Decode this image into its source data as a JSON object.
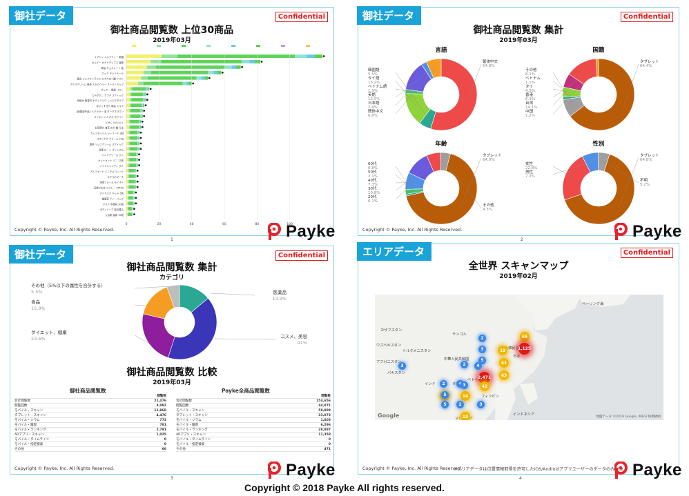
{
  "colors": {
    "accent": "#1aa3d9",
    "confidential": "#e02020",
    "brand_red": "#e6232c"
  },
  "common": {
    "confidential": "Confidential",
    "copyright_small": "Copyright © Payke, Inc. All Rights Reserved.",
    "logo_text": "Payke",
    "footer": "Copyright © 2018 Payke  All rights reserved."
  },
  "slide1": {
    "tag": "御社データ",
    "title": "御社商品閲覧数 上位30商品",
    "subtitle": "2019年03月",
    "page": "1",
    "xticks": [
      "0",
      "20",
      "40",
      "60",
      "80",
      "100"
    ],
    "items": [
      {
        "label": "リプトン ミルクティー 紙箱",
        "v": 120
      },
      {
        "label": "カルビー ポテトチップス 塩味",
        "v": 82
      },
      {
        "label": "明治 チョコレート 板",
        "v": 70
      },
      {
        "label": "ロッテ キシリトール",
        "v": 58
      },
      {
        "label": "森永 ミルクキャラメル ヒアルロン酸 イワシ",
        "v": 50
      },
      {
        "label": "アイスクリーム 抹茶 ストロベリー スーパーカップ",
        "v": 40
      },
      {
        "label": "ポッキー 極細 ハロー",
        "v": 14
      },
      {
        "label": "じゃがりこ サラダ スティック",
        "v": 12
      },
      {
        "label": "化粧水 無香料 ボディミルク しっとりタイプ",
        "v": 12
      },
      {
        "label": "ほいくすきや 明治 ミルク",
        "v": 11
      },
      {
        "label": "【医薬部外品】ヘアカラー 泡 ダークブラウン",
        "v": 10
      },
      {
        "label": "ライオン ハミガキ ホワイト",
        "v": 10
      },
      {
        "label": "ビオレ UVジェル",
        "v": 9
      },
      {
        "label": "お茶漬け 海苔 のり 鮭 うま",
        "v": 9
      },
      {
        "label": "カップヌードル シーフード 3個",
        "v": 8
      },
      {
        "label": "スキンケア クリーム 20g",
        "v": 8
      },
      {
        "label": "薬用 リップクリーム スティック",
        "v": 8
      },
      {
        "label": "目薬 ロート プレミアム",
        "v": 8
      },
      {
        "label": "ハンドクリーム ミニ",
        "v": 7
      },
      {
        "label": "キットカット ミニ 12枚",
        "v": 7
      },
      {
        "label": "ソフトキャンディ グミ",
        "v": 7
      },
      {
        "label": "アルフォート ミニチョコレート",
        "v": 6
      },
      {
        "label": "コアラのマーチ",
        "v": 6
      },
      {
        "label": "洗顔フォーム モイスト",
        "v": 6
      },
      {
        "label": "日焼け止め スプレー SPF50",
        "v": 6
      },
      {
        "label": "アイマスク ホット 5枚",
        "v": 5
      },
      {
        "label": "健康茶 ティーバッグ",
        "v": 5
      },
      {
        "label": "マスク 不織布 30枚",
        "v": 5
      },
      {
        "label": "ボディソープ 詰め替え",
        "v": 4
      },
      {
        "label": "入浴剤 温泉 10錠",
        "v": 4
      }
    ]
  },
  "slide2": {
    "tag": "御社データ",
    "title": "御社商品閲覧数 集計",
    "subtitle": "2019年03月",
    "page": "2",
    "charts": [
      {
        "title": "言語",
        "slices": [
          {
            "name": "繁体中文",
            "pct": "54.8%",
            "v": 54.8,
            "color": "#ee4a4a"
          },
          {
            "name": "韓国語",
            "pct": "5.5%",
            "v": 5.5,
            "color": "#2aa893"
          },
          {
            "name": "タイ語",
            "pct": "15.2%",
            "v": 15.2,
            "color": "#8fd23a"
          },
          {
            "name": "ベトナム語",
            "pct": "1.9%",
            "v": 1.9,
            "color": "#45c16b"
          },
          {
            "name": "英語",
            "pct": "13.5%",
            "v": 13.5,
            "color": "#6a5adf"
          },
          {
            "name": "日本語",
            "pct": "2.4%",
            "v": 2.4,
            "color": "#4f90e8"
          },
          {
            "name": "簡体中文",
            "pct": "6.8%",
            "v": 6.8,
            "color": "#f59d22"
          }
        ]
      },
      {
        "title": "国籍",
        "slices": [
          {
            "name": "タブレット",
            "pct": "64.4%",
            "v": 64.4,
            "color": "#b85c08"
          },
          {
            "name": "その他",
            "pct": "8.1%",
            "v": 8.1,
            "color": "#9e9e9e"
          },
          {
            "name": "ベトナム",
            "pct": "1.1%",
            "v": 1.1,
            "color": "#2aa893"
          },
          {
            "name": "タイ",
            "pct": "4.5%",
            "v": 4.5,
            "color": "#8fd23a"
          },
          {
            "name": "香港",
            "pct": "6.3%",
            "v": 6.3,
            "color": "#c2307a"
          },
          {
            "name": "台湾",
            "pct": "14.1%",
            "v": 14.1,
            "color": "#ee4a4a"
          },
          {
            "name": "中国",
            "pct": "1.2%",
            "v": 1.2,
            "color": "#f59d22"
          }
        ]
      },
      {
        "title": "年齢",
        "slices": [
          {
            "name": "タブレット",
            "pct": "64.9%",
            "v": 64.9,
            "color": "#b85c08"
          },
          {
            "name": "60代",
            "pct": "0.8%",
            "v": 0.8,
            "color": "#2aa893"
          },
          {
            "name": "50代",
            "pct": "2.1%",
            "v": 2.1,
            "color": "#45c16b"
          },
          {
            "name": "40代",
            "pct": "7.3%",
            "v": 7.3,
            "color": "#4f90e8"
          },
          {
            "name": "30代",
            "pct": "10.8%",
            "v": 10.8,
            "color": "#6a5adf"
          },
          {
            "name": "20代",
            "pct": "6.1%",
            "v": 6.1,
            "color": "#ee4a4a"
          },
          {
            "name": "その他",
            "pct": "4.3%",
            "v": 4.3,
            "color": "#9e9e9e"
          }
        ]
      },
      {
        "title": "性別",
        "slices": [
          {
            "name": "タブレット",
            "pct": "64.8%",
            "v": 64.8,
            "color": "#b85c08"
          },
          {
            "name": "女性",
            "pct": "22.8%",
            "v": 22.8,
            "color": "#ee4a4a"
          },
          {
            "name": "男性",
            "pct": "7.3%",
            "v": 7.3,
            "color": "#4f90e8"
          },
          {
            "name": "不明",
            "pct": "5.2%",
            "v": 5.2,
            "color": "#9e9e9e"
          }
        ]
      }
    ]
  },
  "slide3": {
    "tag": "御社データ",
    "title": "御社商品閲覧数 集計",
    "subtitle": "カテゴリ",
    "page": "3",
    "slices": [
      {
        "name": "医薬品",
        "pct": "13.9%",
        "v": 13.9,
        "color": "#2aa893"
      },
      {
        "name": "コスメ、美容",
        "pct": "41%",
        "v": 41,
        "color": "#3b35b8"
      },
      {
        "name": "ダイエット、健康",
        "pct": "23.6%",
        "v": 23.6,
        "color": "#8e1e9e"
      },
      {
        "name": "食品",
        "pct": "15.9%",
        "v": 15.9,
        "color": "#f59d22"
      },
      {
        "name": "その他（5%以下の属性を合計する）",
        "pct": "5.5%",
        "v": 5.5,
        "color": "#bdbdbd"
      }
    ],
    "compare_title": "御社商品閲覧数 比較",
    "compare_subtitle": "2019年03月",
    "left_table_title": "御社商品閲覧数",
    "right_table_title": "Payke全商品閲覧数",
    "col_header": "閲覧数",
    "left_rows": [
      [
        "合計閲覧数",
        "21,476"
      ],
      [
        "閲覧回数",
        "4,092"
      ],
      [
        "モバイル・スキャン",
        "11,868"
      ],
      [
        "タブレット・スキャン",
        "4,476"
      ],
      [
        "モバイル・ジラム",
        "773"
      ],
      [
        "モバイル・履歴",
        "781"
      ],
      [
        "モバイル・ランキング",
        "2,791"
      ],
      [
        "ARアプリ・スキャン",
        "1,025"
      ],
      [
        "モバイル・タイムライン",
        "0"
      ],
      [
        "モバイル・指定検索",
        "0"
      ],
      [
        "その他",
        "66"
      ]
    ],
    "right_rows": [
      [
        "合計閲覧数",
        "154,656"
      ],
      [
        "閲覧回数",
        "44,071"
      ],
      [
        "モバイル・スキャン",
        "59,889"
      ],
      [
        "タブレット・スキャン",
        "33,073"
      ],
      [
        "モバイル・ジラム",
        "1,803"
      ],
      [
        "モバイル・履歴",
        "6,296"
      ],
      [
        "モバイル・ランキング",
        "28,897"
      ],
      [
        "ARアプリ・スキャン",
        "11,358"
      ],
      [
        "モバイル・タイムライン",
        "0"
      ],
      [
        "モバイル・指定検索",
        "0"
      ],
      [
        "その他",
        "471"
      ]
    ]
  },
  "slide4": {
    "tag": "エリアデータ",
    "title": "全世界 スキャンマップ",
    "subtitle": "2019年02月",
    "page": "4",
    "note": "※エリアデータは位置情報取得を許可したiOS/Androidアプリユーザーのデータのみ対象",
    "map_attribution": "地図データ ©2019 Google, INEGI  利用規約",
    "google": "Google",
    "places": [
      "カザフスタン",
      "モンゴル",
      "ウズベキスタン",
      "トルクメニスタン",
      "アフガニスタン",
      "パキスタン",
      "インド",
      "中華人民共和国",
      "大韓民国",
      "日本",
      "タイ",
      "ベトナム",
      "フィリピン",
      "マレーシア",
      "インドネシア",
      "ベーリング海"
    ],
    "bubbles": [
      {
        "label": "65",
        "kind": "yellow"
      },
      {
        "label": "19",
        "kind": "yellow"
      },
      {
        "label": "41",
        "kind": "yellow"
      },
      {
        "label": "63",
        "kind": "yellow"
      },
      {
        "label": "1,125",
        "kind": "red"
      },
      {
        "label": "2,471",
        "kind": "red"
      },
      {
        "label": "42",
        "kind": "yellow"
      },
      {
        "label": "42",
        "kind": "yellow"
      },
      {
        "label": "14",
        "kind": "yellow"
      },
      {
        "label": "13",
        "kind": "yellow"
      },
      {
        "label": "2",
        "kind": "blue"
      },
      {
        "label": "3",
        "kind": "blue"
      },
      {
        "label": "5",
        "kind": "blue"
      },
      {
        "label": "4",
        "kind": "blue"
      },
      {
        "label": "2",
        "kind": "blue"
      },
      {
        "label": "3",
        "kind": "blue"
      },
      {
        "label": "2",
        "kind": "blue"
      },
      {
        "label": "5",
        "kind": "blue"
      },
      {
        "label": "4",
        "kind": "blue"
      },
      {
        "label": "3",
        "kind": "blue"
      },
      {
        "label": "2",
        "kind": "blue"
      },
      {
        "label": "5",
        "kind": "blue"
      },
      {
        "label": "3",
        "kind": "blue"
      }
    ]
  }
}
